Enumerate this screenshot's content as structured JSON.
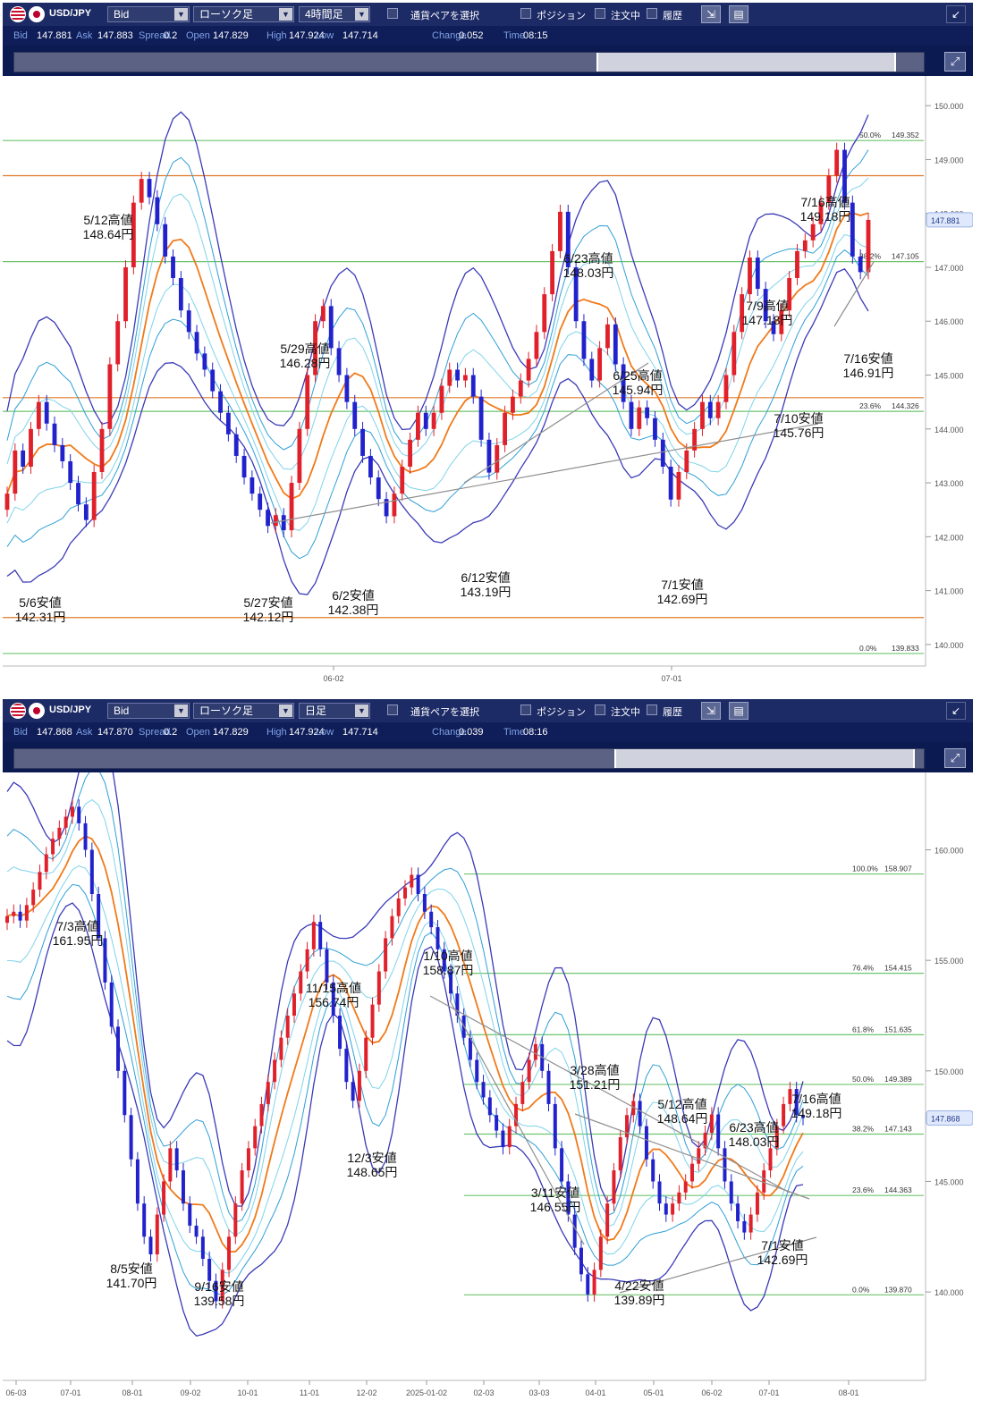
{
  "panels": [
    {
      "toolbar": {
        "symbol": "USD/JPY",
        "price_type": "Bid",
        "chart_type": "ローソク足",
        "timeframe": "4時間足",
        "pair_select": "通貨ペアを選択",
        "position": "ポジション",
        "orders": "注文中",
        "history": "履歴"
      },
      "quote": [
        [
          "Bid",
          "147.881"
        ],
        [
          "Ask",
          "147.883"
        ],
        [
          "Spread",
          "0.2"
        ],
        [
          "Open",
          "147.829"
        ],
        [
          "High",
          "147.924"
        ],
        [
          "Low",
          "147.714"
        ],
        [
          "Change",
          "0.052"
        ],
        [
          "Time",
          "08:15"
        ]
      ],
      "navigator": {
        "selection_start": 0.64,
        "selection_end": 0.97
      }
    },
    {
      "toolbar": {
        "symbol": "USD/JPY",
        "price_type": "Bid",
        "chart_type": "ローソク足",
        "timeframe": "日足",
        "pair_select": "通貨ペアを選択",
        "position": "ポジション",
        "orders": "注文中",
        "history": "履歴"
      },
      "quote": [
        [
          "Bid",
          "147.868"
        ],
        [
          "Ask",
          "147.870"
        ],
        [
          "Spread",
          "0.2"
        ],
        [
          "Open",
          "147.829"
        ],
        [
          "High",
          "147.924"
        ],
        [
          "Low",
          "147.714"
        ],
        [
          "Change",
          "0.039"
        ],
        [
          "Time",
          "08:16"
        ]
      ],
      "navigator": {
        "selection_start": 0.66,
        "selection_end": 0.99
      }
    }
  ],
  "chart_data": [
    {
      "type": "candlestick",
      "pair": "USD/JPY",
      "timeframe": "4時間足",
      "ylim": [
        139.6,
        150.55
      ],
      "y_ticks": [
        "150.000",
        "149.000",
        "148.000",
        "147.000",
        "146.000",
        "145.000",
        "144.000",
        "143.000",
        "142.000",
        "141.000",
        "140.000"
      ],
      "x_ticks": [
        "06-02",
        "07-01"
      ],
      "current_price": "147.881",
      "fibonacci": [
        {
          "level": "50.0%",
          "price": "149.352",
          "color": "#6fc46f"
        },
        {
          "level": "38.2%",
          "price": "147.105",
          "color": "#6fc46f"
        },
        {
          "level": "23.6%",
          "price": "144.326",
          "color": "#e07a28"
        },
        {
          "level": "0.0%",
          "price": "139.833",
          "color": "#6fc46f"
        }
      ],
      "h_lines": [
        {
          "price": 149.352,
          "color": "#6fc46f"
        },
        {
          "price": 148.7,
          "color": "#e07a28"
        },
        {
          "price": 147.105,
          "color": "#6fc46f"
        },
        {
          "price": 144.58,
          "color": "#e07a28"
        },
        {
          "price": 144.326,
          "color": "#6fc46f"
        },
        {
          "price": 140.5,
          "color": "#e07a28"
        },
        {
          "price": 139.833,
          "color": "#6fc46f"
        }
      ],
      "candles": [
        142.8,
        143.6,
        143.3,
        144.0,
        144.5,
        144.1,
        143.7,
        143.4,
        143.0,
        142.6,
        142.31,
        143.2,
        144.0,
        145.2,
        146.0,
        147.0,
        148.2,
        148.64,
        148.3,
        147.8,
        147.2,
        146.8,
        146.2,
        145.8,
        145.4,
        145.1,
        144.7,
        144.3,
        143.9,
        143.5,
        143.1,
        142.8,
        142.5,
        142.2,
        142.4,
        142.12,
        143.0,
        144.0,
        145.0,
        146.0,
        146.28,
        145.5,
        145.0,
        144.5,
        144.0,
        143.5,
        143.1,
        142.7,
        142.38,
        142.8,
        143.3,
        143.8,
        144.3,
        144.0,
        144.3,
        144.8,
        145.1,
        144.9,
        145.0,
        144.6,
        143.8,
        143.19,
        143.7,
        144.3,
        144.6,
        144.9,
        145.3,
        145.8,
        146.5,
        147.3,
        148.03,
        147.0,
        146.0,
        145.3,
        144.9,
        145.5,
        145.94,
        145.2,
        144.5,
        144.0,
        144.4,
        144.2,
        143.8,
        143.3,
        142.69,
        143.2,
        143.6,
        144.0,
        144.5,
        144.2,
        144.5,
        145.0,
        145.8,
        146.5,
        147.18,
        146.6,
        146.0,
        145.76,
        146.2,
        146.8,
        147.3,
        147.5,
        147.8,
        148.2,
        148.7,
        149.18,
        148.2,
        147.2,
        146.91,
        147.88
      ],
      "annotations": [
        {
          "date": "5/6",
          "kind": "安値",
          "price": "142.31円"
        },
        {
          "date": "5/12",
          "kind": "高値",
          "price": "148.64円"
        },
        {
          "date": "5/27",
          "kind": "安値",
          "price": "142.12円"
        },
        {
          "date": "5/29",
          "kind": "高値",
          "price": "146.28円"
        },
        {
          "date": "6/2",
          "kind": "安値",
          "price": "142.38円"
        },
        {
          "date": "6/12",
          "kind": "安値",
          "price": "143.19円"
        },
        {
          "date": "6/23",
          "kind": "高値",
          "price": "148.03円"
        },
        {
          "date": "6/25",
          "kind": "高値",
          "price": "145.94円"
        },
        {
          "date": "7/1",
          "kind": "安値",
          "price": "142.69円"
        },
        {
          "date": "7/9",
          "kind": "高値",
          "price": "147.18円"
        },
        {
          "date": "7/10",
          "kind": "安値",
          "price": "145.76円"
        },
        {
          "date": "7/16",
          "kind": "高値",
          "price": "149.18円"
        },
        {
          "date": "7/16",
          "kind": "安値",
          "price": "146.91円"
        }
      ]
    },
    {
      "type": "candlestick",
      "pair": "USD/JPY",
      "timeframe": "日足",
      "ylim": [
        136.0,
        163.5
      ],
      "y_ticks": [
        "160.000",
        "155.000",
        "150.000",
        "145.000",
        "140.000"
      ],
      "x_ticks": [
        "06-03",
        "07-01",
        "08-01",
        "09-02",
        "10-01",
        "11-01",
        "12-02",
        "2025-01-02",
        "02-03",
        "03-03",
        "04-01",
        "05-01",
        "06-02",
        "07-01",
        "08-01"
      ],
      "current_price": "147.868",
      "fibonacci": [
        {
          "level": "100.0%",
          "price": "158.907",
          "color": "#6fc46f"
        },
        {
          "level": "76.4%",
          "price": "154.415",
          "color": "#6fc46f"
        },
        {
          "level": "61.8%",
          "price": "151.635",
          "color": "#6fc46f"
        },
        {
          "level": "50.0%",
          "price": "149.389",
          "color": "#6fc46f"
        },
        {
          "level": "38.2%",
          "price": "147.143",
          "color": "#6fc46f"
        },
        {
          "level": "23.6%",
          "price": "144.363",
          "color": "#6fc46f"
        },
        {
          "level": "0.0%",
          "price": "139.870",
          "color": "#6fc46f"
        }
      ],
      "candles": [
        157.0,
        157.2,
        156.8,
        157.5,
        158.2,
        159.0,
        159.8,
        160.5,
        161.0,
        161.5,
        161.95,
        161.2,
        160.0,
        158.0,
        156.0,
        154.0,
        152.0,
        150.0,
        148.0,
        146.0,
        144.0,
        142.5,
        141.7,
        143.5,
        145.0,
        146.5,
        145.5,
        144.0,
        143.0,
        142.5,
        141.5,
        140.5,
        139.58,
        141.0,
        142.5,
        144.0,
        145.5,
        146.5,
        147.5,
        148.5,
        149.5,
        150.5,
        151.5,
        152.5,
        153.5,
        154.5,
        155.5,
        156.74,
        155.5,
        154.0,
        152.5,
        151.0,
        149.5,
        148.65,
        150.0,
        151.5,
        153.0,
        154.5,
        156.0,
        157.0,
        157.8,
        158.3,
        158.87,
        158.0,
        157.2,
        156.5,
        155.5,
        154.5,
        153.5,
        152.5,
        151.5,
        150.5,
        149.5,
        148.8,
        148.0,
        147.3,
        146.55,
        147.5,
        148.5,
        149.5,
        150.5,
        151.21,
        150.0,
        148.5,
        146.5,
        145.0,
        143.5,
        142.0,
        140.8,
        139.89,
        141.0,
        142.5,
        144.0,
        145.5,
        147.0,
        148.0,
        148.64,
        147.5,
        146.0,
        145.0,
        144.0,
        143.5,
        144.0,
        144.5,
        145.0,
        145.8,
        146.5,
        147.2,
        148.03,
        146.5,
        145.0,
        144.0,
        143.2,
        142.69,
        143.5,
        144.5,
        145.5,
        146.5,
        147.5,
        148.5,
        149.18,
        148.0,
        147.87
      ],
      "annotations": [
        {
          "date": "7/3",
          "kind": "高値",
          "price": "161.95円"
        },
        {
          "date": "8/5",
          "kind": "安値",
          "price": "141.70円"
        },
        {
          "date": "9/16",
          "kind": "安値",
          "price": "139.58円"
        },
        {
          "date": "11/15",
          "kind": "高値",
          "price": "156.74円"
        },
        {
          "date": "12/3",
          "kind": "安値",
          "price": "148.65円"
        },
        {
          "date": "1/10",
          "kind": "高値",
          "price": "158.87円"
        },
        {
          "date": "3/11",
          "kind": "安値",
          "price": "146.55円"
        },
        {
          "date": "3/28",
          "kind": "高値",
          "price": "151.21円"
        },
        {
          "date": "4/22",
          "kind": "安値",
          "price": "139.89円"
        },
        {
          "date": "5/12",
          "kind": "高値",
          "price": "148.64円"
        },
        {
          "date": "6/23",
          "kind": "高値",
          "price": "148.03円"
        },
        {
          "date": "7/1",
          "kind": "安値",
          "price": "142.69円"
        },
        {
          "date": "7/16",
          "kind": "高値",
          "price": "149.18円"
        }
      ]
    }
  ]
}
